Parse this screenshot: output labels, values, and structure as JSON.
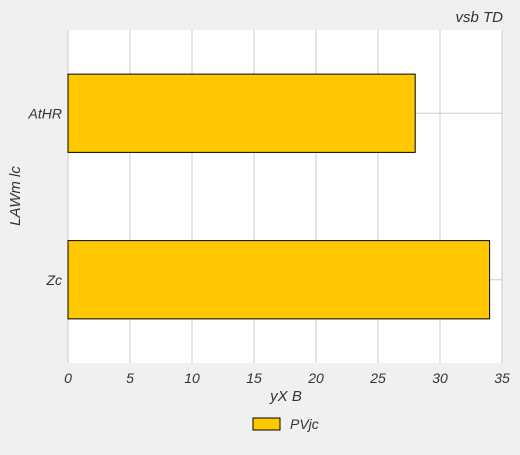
{
  "chart_data": {
    "type": "bar",
    "orientation": "horizontal",
    "title": "vsb TD",
    "title_position": "top-right",
    "xlabel": "yX B",
    "ylabel": "LAWm lc",
    "categories": [
      "AtHR",
      "Zc"
    ],
    "series": [
      {
        "name": "PVjc",
        "values": [
          28,
          34
        ],
        "color": "#ffc800"
      }
    ],
    "xlim": [
      0,
      35
    ],
    "xticks": [
      0,
      5,
      10,
      15,
      20,
      25,
      30,
      35
    ],
    "grid": true,
    "legend_position": "bottom-center"
  },
  "colors": {
    "background": "#f0f0f0",
    "plot_background": "#ffffff",
    "grid": "#cccccc",
    "text": "#333333"
  }
}
